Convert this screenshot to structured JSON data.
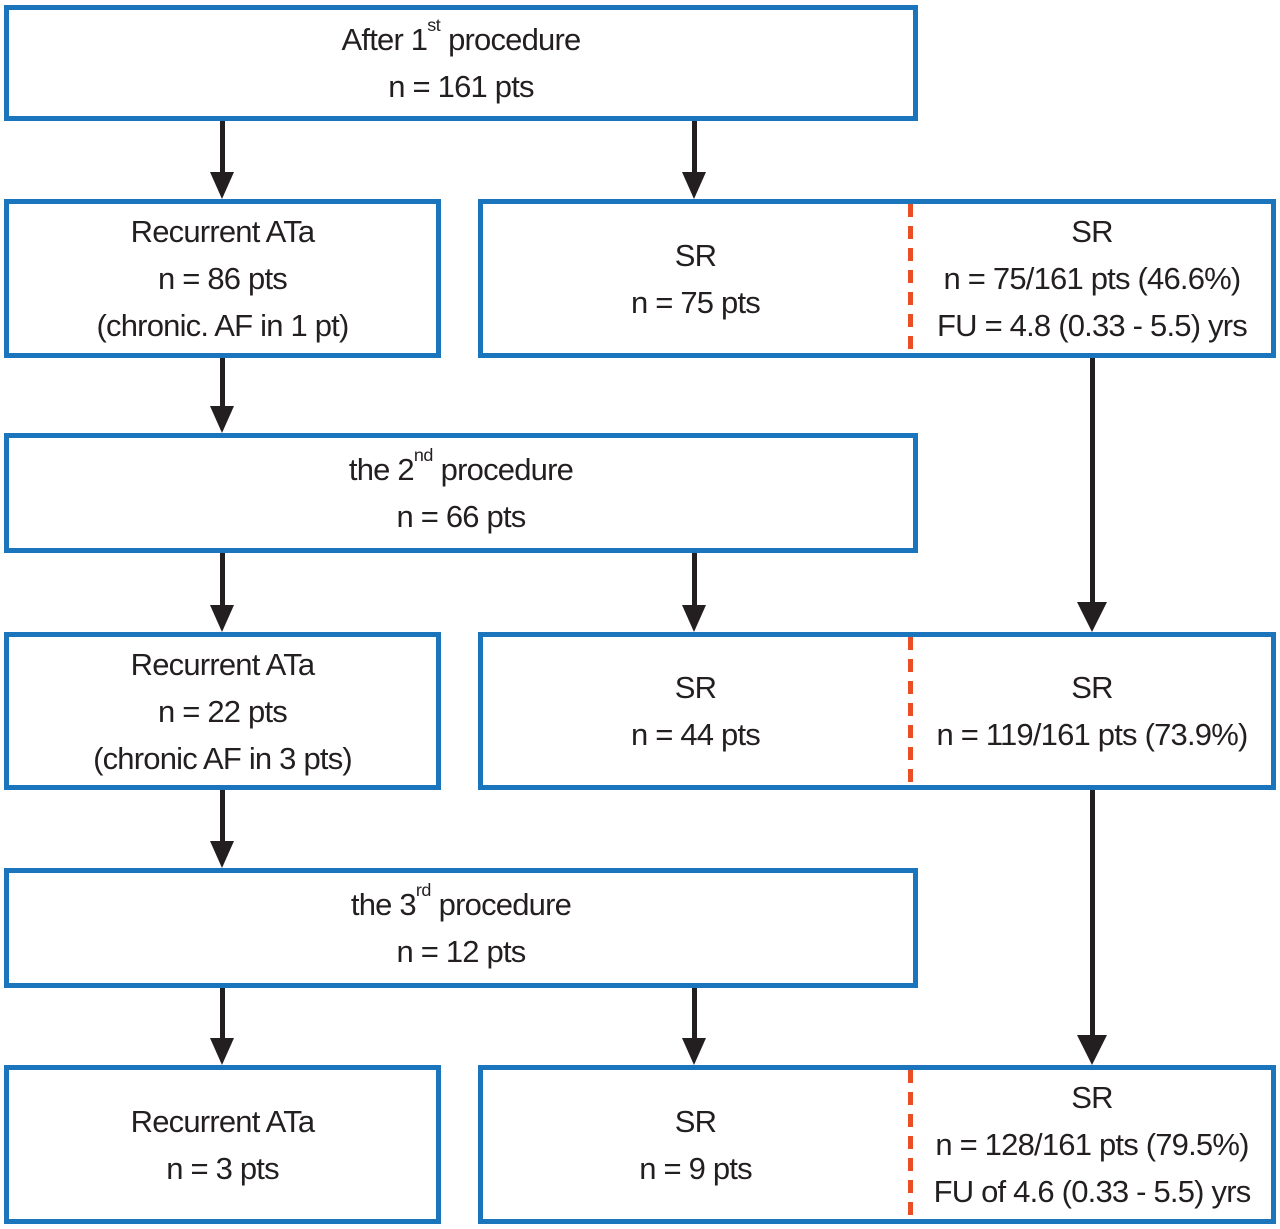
{
  "colors": {
    "border_blue": "#1b75bc",
    "arrow_black": "#231f20",
    "dash_orange": "#ea4e24",
    "text_black": "#231f20",
    "background": "#ffffff"
  },
  "boxes": {
    "proc1": {
      "title_prefix": "After 1",
      "title_sup": "st",
      "title_suffix": " procedure",
      "count": "n = 161 pts"
    },
    "recurrent1": {
      "title": "Recurrent ATa",
      "count": "n = 86 pts",
      "note": "(chronic. AF in 1 pt)"
    },
    "sr1": {
      "label": "SR",
      "count": "n = 75 pts"
    },
    "cum1": {
      "label": "SR",
      "count": "n = 75/161 pts (46.6%)",
      "followup": "FU = 4.8 (0.33 - 5.5) yrs"
    },
    "proc2": {
      "title_prefix": "the 2",
      "title_sup": "nd",
      "title_suffix": " procedure",
      "count": "n = 66 pts"
    },
    "recurrent2": {
      "title": "Recurrent ATa",
      "count": "n = 22 pts",
      "note": "(chronic AF in 3 pts)"
    },
    "sr2": {
      "label": "SR",
      "count": "n = 44 pts"
    },
    "cum2": {
      "label": "SR",
      "count": "n = 119/161 pts (73.9%)"
    },
    "proc3": {
      "title_prefix": "the 3",
      "title_sup": "rd",
      "title_suffix": " procedure",
      "count": "n = 12 pts"
    },
    "recurrent3": {
      "title": "Recurrent ATa",
      "count": "n = 3 pts"
    },
    "sr3": {
      "label": "SR",
      "count": "n = 9 pts"
    },
    "cum3": {
      "label": "SR",
      "count": "n = 128/161 pts (79.5%)",
      "followup": "FU of 4.6 (0.33 - 5.5) yrs"
    }
  }
}
